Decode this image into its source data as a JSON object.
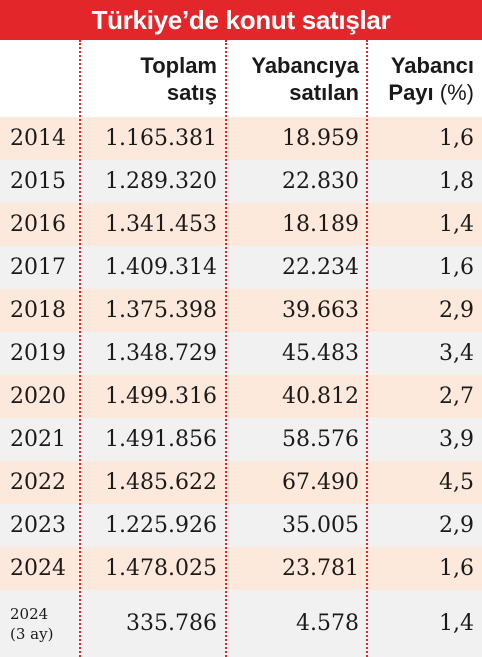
{
  "chart_data": {
    "type": "table",
    "title": "Türkiye’de konut satışlar",
    "columns": [
      {
        "key": "year",
        "label_lines": [
          "",
          ""
        ]
      },
      {
        "key": "toplam",
        "label_lines": [
          "Toplam",
          "satış"
        ]
      },
      {
        "key": "yabanci",
        "label_lines": [
          "Yabancıya",
          "satılan"
        ]
      },
      {
        "key": "pay",
        "label_lines": [
          "Yabancı",
          "Payı"
        ],
        "unit": "(%)"
      }
    ],
    "rows": [
      {
        "year": "2014",
        "toplam": "1.165.381",
        "yabanci": "18.959",
        "pay": "1,6"
      },
      {
        "year": "2015",
        "toplam": "1.289.320",
        "yabanci": "22.830",
        "pay": "1,8"
      },
      {
        "year": "2016",
        "toplam": "1.341.453",
        "yabanci": "18.189",
        "pay": "1,4"
      },
      {
        "year": "2017",
        "toplam": "1.409.314",
        "yabanci": "22.234",
        "pay": "1,6"
      },
      {
        "year": "2018",
        "toplam": "1.375.398",
        "yabanci": "39.663",
        "pay": "2,9"
      },
      {
        "year": "2019",
        "toplam": "1.348.729",
        "yabanci": "45.483",
        "pay": "3,4"
      },
      {
        "year": "2020",
        "toplam": "1.499.316",
        "yabanci": "40.812",
        "pay": "2,7"
      },
      {
        "year": "2021",
        "toplam": "1.491.856",
        "yabanci": "58.576",
        "pay": "3,9"
      },
      {
        "year": "2022",
        "toplam": "1.485.622",
        "yabanci": "67.490",
        "pay": "4,5"
      },
      {
        "year": "2023",
        "toplam": "1.225.926",
        "yabanci": "35.005",
        "pay": "2,9"
      },
      {
        "year": "2024",
        "toplam": "1.478.025",
        "yabanci": "23.781",
        "pay": "1,6"
      },
      {
        "year": "2024",
        "year_sub": "(3 ay)",
        "toplam": "335.786",
        "yabanci": "4.578",
        "pay": "1,4"
      }
    ]
  },
  "colors": {
    "title_bg": "#e3262a",
    "title_text": "#ffffff",
    "row_odd": "#fde9dc",
    "row_even": "#f1f1f1",
    "divider": "#e3262a",
    "text": "#1a1a1a"
  }
}
